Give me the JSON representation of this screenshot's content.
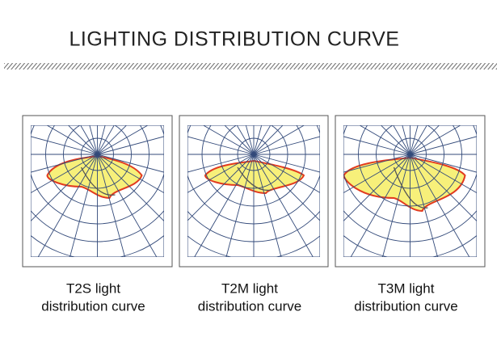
{
  "header": {
    "title": "LIGHTING DISTRIBUTION CURVE"
  },
  "panels": [
    {
      "caption": [
        "T2S light",
        "distribution curve"
      ]
    },
    {
      "caption": [
        "T2M light",
        "distribution curve"
      ]
    },
    {
      "caption": [
        "T3M light",
        "distribution curve"
      ]
    }
  ]
}
